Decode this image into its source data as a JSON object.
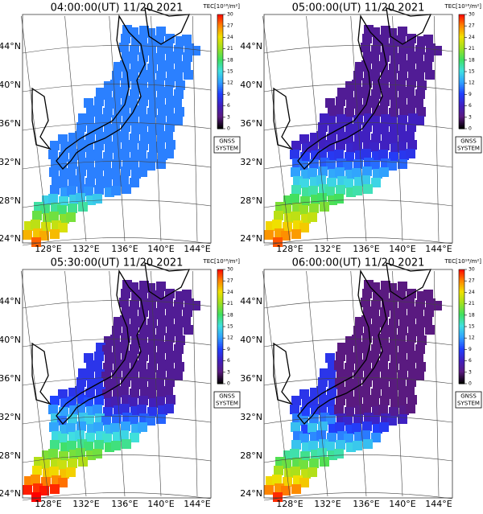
{
  "panels": [
    {
      "title": "04:00:00(UT) 11/20 2021"
    },
    {
      "title": "05:00:00(UT) 11/20 2021"
    },
    {
      "title": "05:30:00(UT) 11/20 2021"
    },
    {
      "title": "06:00:00(UT) 11/20 2021"
    }
  ],
  "lat_labels": [
    "44°N",
    "40°N",
    "36°N",
    "32°N",
    "28°N",
    "24°N"
  ],
  "lon_labels": [
    "128°E",
    "132°E",
    "136°E",
    "140°E",
    "144°E"
  ],
  "colorbar": {
    "label": "TEC[10¹⁶/m²]",
    "ticks": [
      0,
      3,
      6,
      9,
      12,
      15,
      18,
      21,
      24,
      27,
      30
    ]
  },
  "badge": [
    "GNSS",
    "SYSTEM"
  ]
}
